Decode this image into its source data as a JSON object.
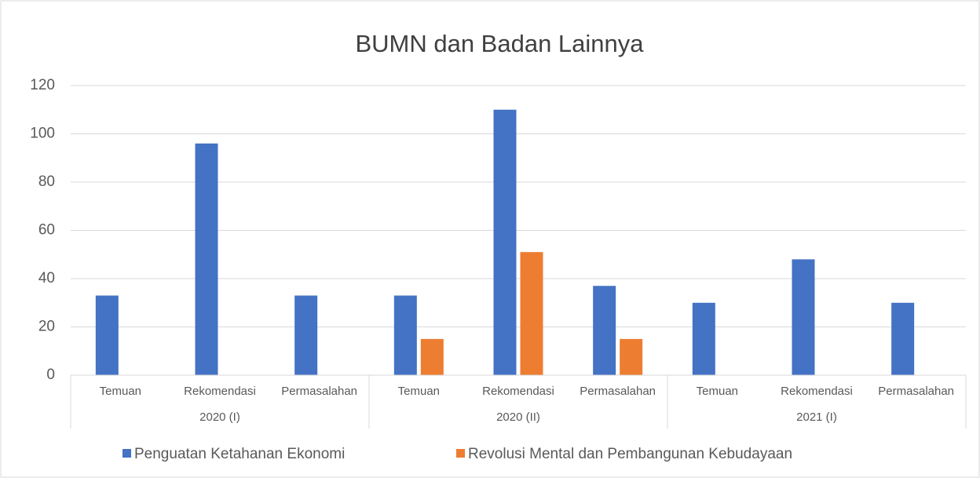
{
  "chart_data": {
    "type": "bar",
    "title": "BUMN dan Badan Lainnya",
    "categories": [
      "Temuan",
      "Rekomendasi",
      "Permasalahan",
      "Temuan",
      "Rekomendasi",
      "Permasalahan",
      "Temuan",
      "Rekomendasi",
      "Permasalahan"
    ],
    "groups": [
      "2020 (I)",
      "2020 (II)",
      "2021 (I)"
    ],
    "series": [
      {
        "name": "Penguatan Ketahanan Ekonomi",
        "color": "#4472c4",
        "values": [
          33,
          96,
          33,
          33,
          110,
          37,
          30,
          48,
          30
        ]
      },
      {
        "name": "Revolusi Mental dan Pembangunan Kebudayaan",
        "color": "#ed7d31",
        "values": [
          null,
          null,
          null,
          15,
          51,
          15,
          null,
          null,
          null
        ]
      }
    ],
    "ylim": [
      0,
      120
    ],
    "yticks": [
      0,
      20,
      40,
      60,
      80,
      100,
      120
    ],
    "grid": true,
    "legend": "bottom"
  }
}
